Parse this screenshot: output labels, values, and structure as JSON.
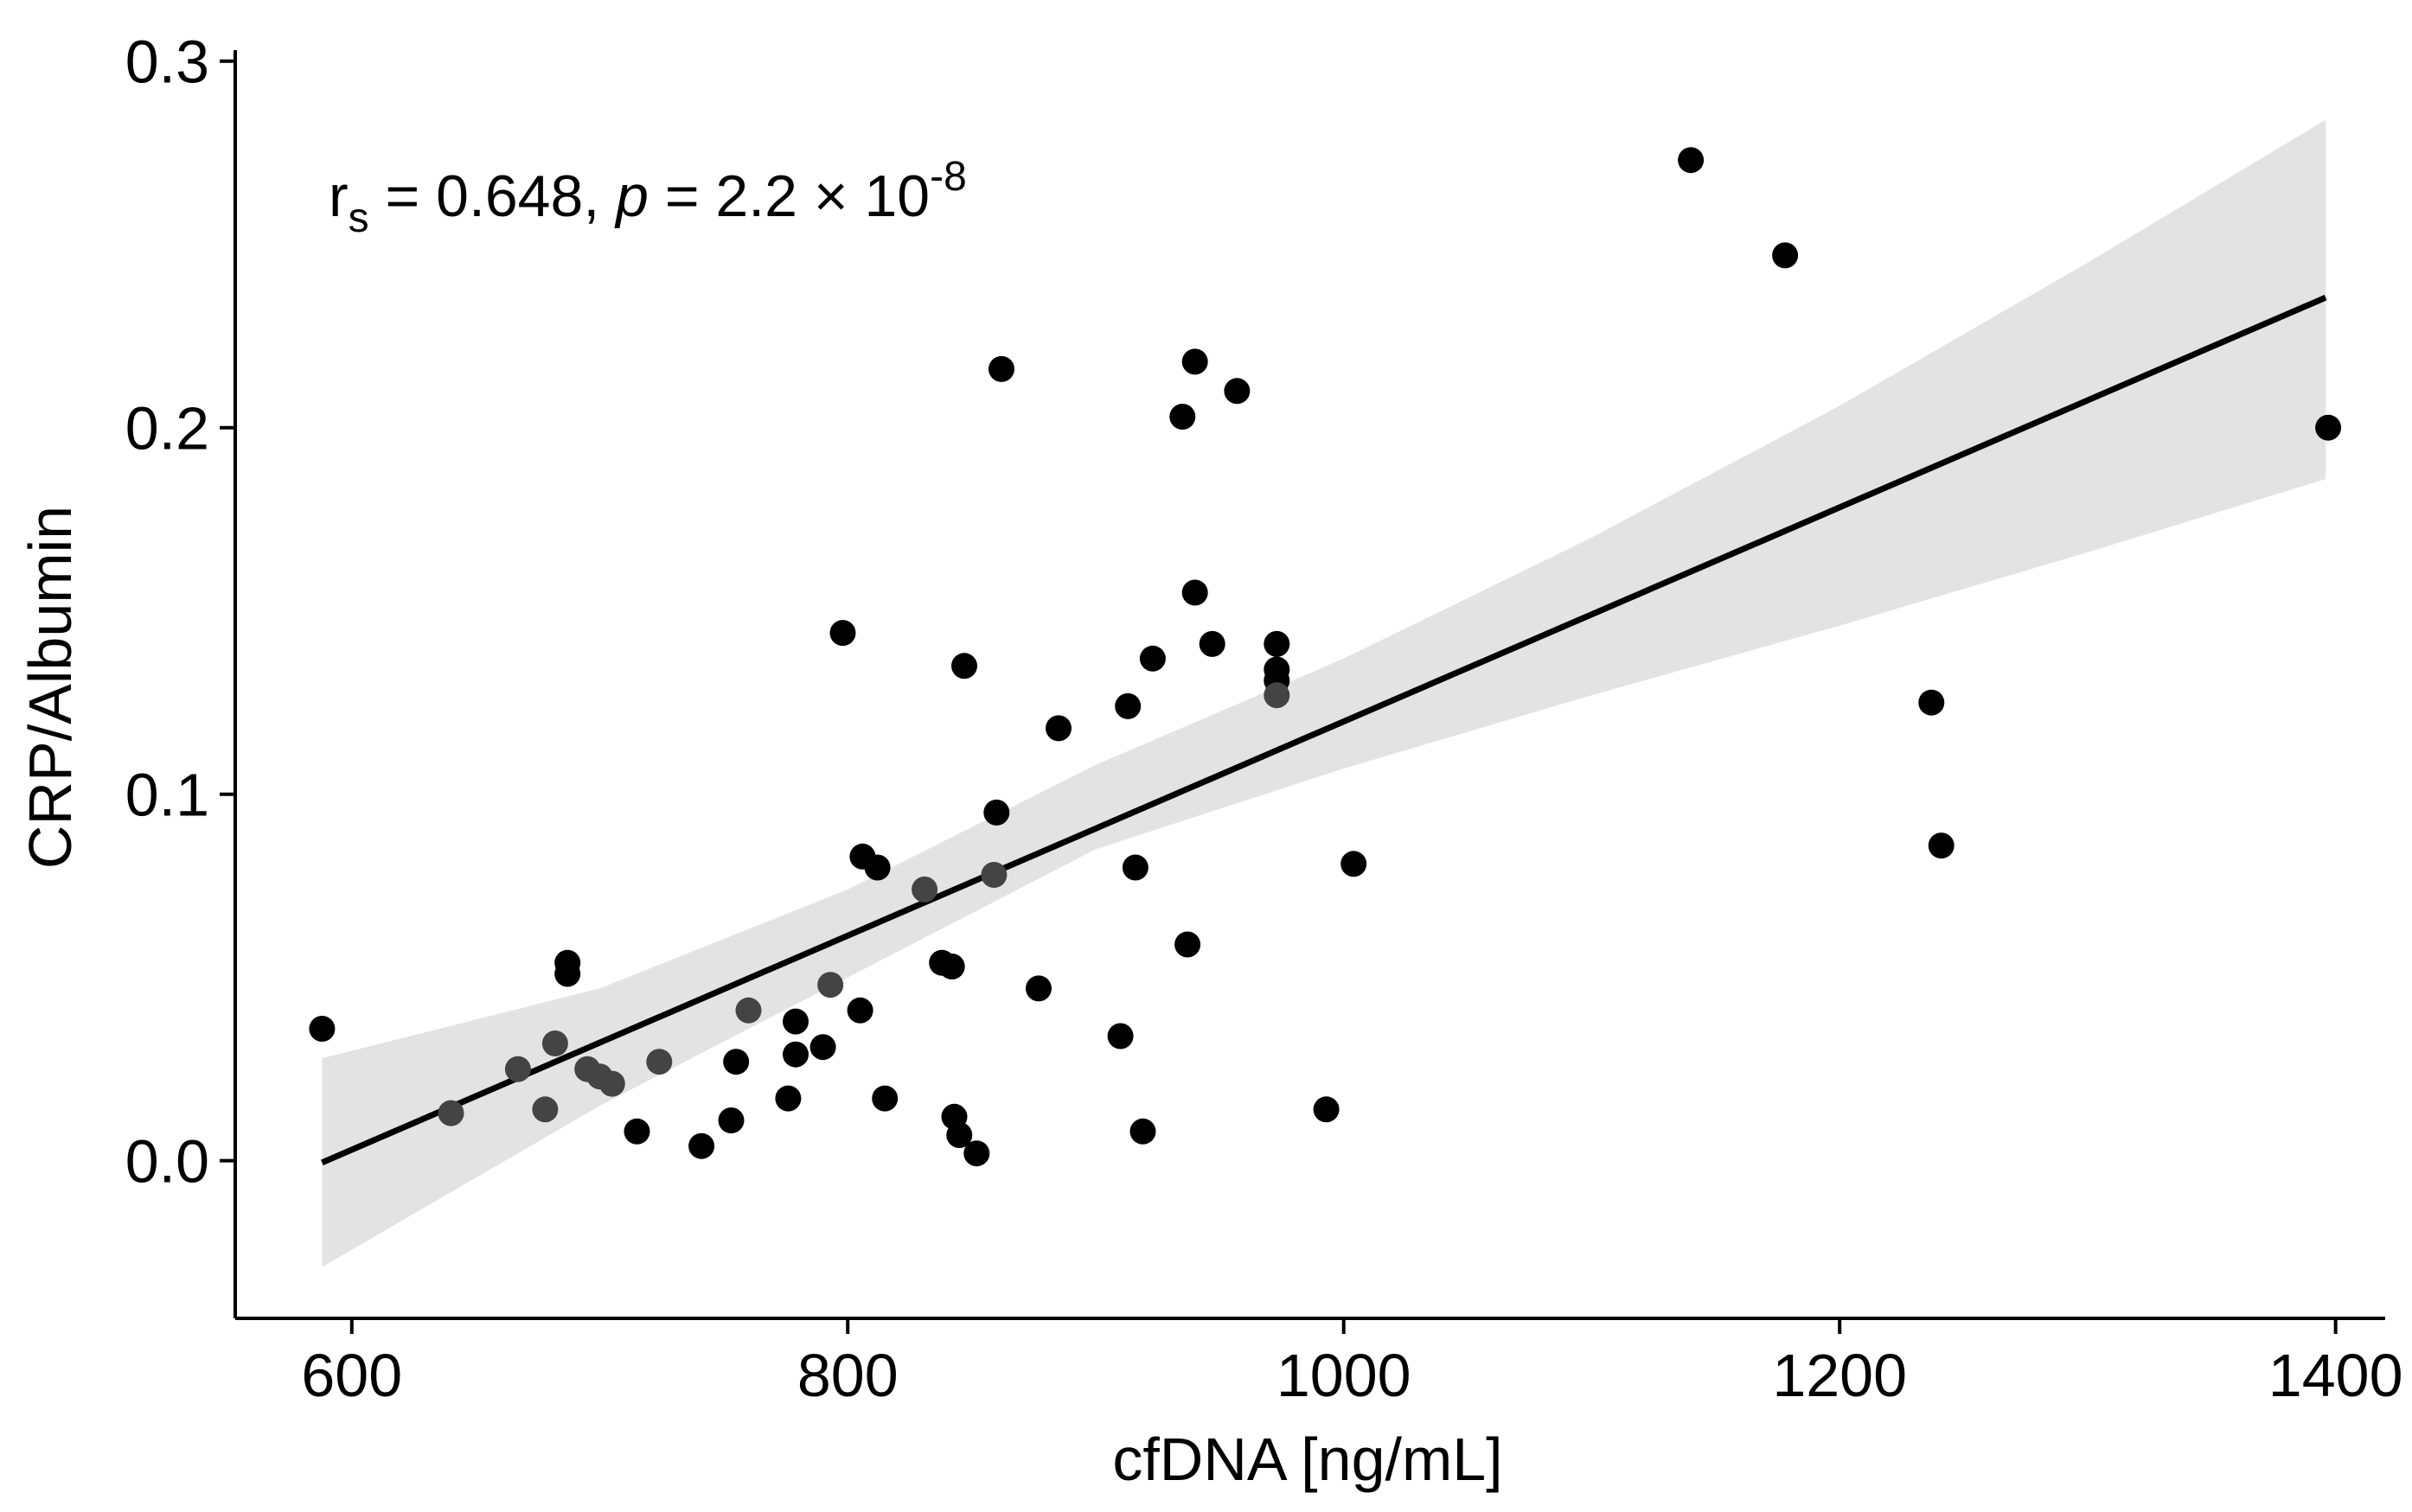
{
  "chart_data": {
    "type": "scatter",
    "title": "",
    "xlabel": "cfDNA [ng/mL]",
    "ylabel": "CRP/Albumin",
    "xlim": [
      553,
      1420
    ],
    "ylim": [
      -0.043,
      0.303
    ],
    "xticks": [
      600,
      800,
      1000,
      1200,
      1400
    ],
    "yticks": [
      0.0,
      0.1,
      0.2,
      0.3
    ],
    "xtick_labels": [
      "600",
      "800",
      "1000",
      "1200",
      "1400"
    ],
    "ytick_labels": [
      "0.0",
      "0.1",
      "0.2",
      "0.3"
    ],
    "annotation": {
      "r": "r",
      "r_sub": "s",
      "rho_text": " = 0.648, ",
      "p": "p",
      "p_text": " = 2.2 × 10",
      "p_exp": "-8"
    },
    "fit": {
      "x": [
        588,
        1396
      ],
      "y": [
        -0.0005,
        0.2355
      ],
      "ci_x": [
        588,
        700,
        800,
        900,
        1000,
        1100,
        1200,
        1300,
        1396
      ],
      "ci_lower": [
        -0.029,
        0.015,
        0.05,
        0.085,
        0.107,
        0.127,
        0.146,
        0.166,
        0.186
      ],
      "ci_upper": [
        0.028,
        0.047,
        0.074,
        0.108,
        0.137,
        0.17,
        0.206,
        0.245,
        0.284
      ]
    },
    "points": {
      "x": [
        1140,
        1178,
        862,
        940,
        957,
        935,
        1397,
        940,
        947,
        973,
        973,
        798,
        847,
        923,
        885,
        913,
        973,
        973,
        860,
        1004,
        806,
        812,
        916,
        831,
        859,
        937,
        838,
        842,
        687,
        687,
        793,
        877,
        760,
        805,
        588,
        910,
        779,
        682,
        667,
        779,
        695,
        755,
        790,
        724,
        700,
        705,
        776,
        815,
        640,
        678,
        993,
        753,
        843,
        715,
        919,
        845,
        741,
        852,
        1237,
        1241
      ],
      "y": [
        0.273,
        0.247,
        0.216,
        0.218,
        0.21,
        0.203,
        0.2,
        0.155,
        0.141,
        0.141,
        0.134,
        0.144,
        0.135,
        0.137,
        0.118,
        0.124,
        0.131,
        0.127,
        0.095,
        0.081,
        0.083,
        0.08,
        0.08,
        0.074,
        0.078,
        0.059,
        0.054,
        0.053,
        0.054,
        0.051,
        0.048,
        0.047,
        0.041,
        0.041,
        0.036,
        0.034,
        0.038,
        0.032,
        0.025,
        0.029,
        0.025,
        0.027,
        0.031,
        0.027,
        0.023,
        0.021,
        0.017,
        0.017,
        0.013,
        0.014,
        0.014,
        0.011,
        0.012,
        0.008,
        0.008,
        0.007,
        0.004,
        0.002,
        0.125,
        0.086
      ]
    }
  },
  "colors": {
    "point": "#000000",
    "point_light": "#444444",
    "line": "#000000",
    "ribbon": "#e3e3e3",
    "axis": "#000000"
  }
}
